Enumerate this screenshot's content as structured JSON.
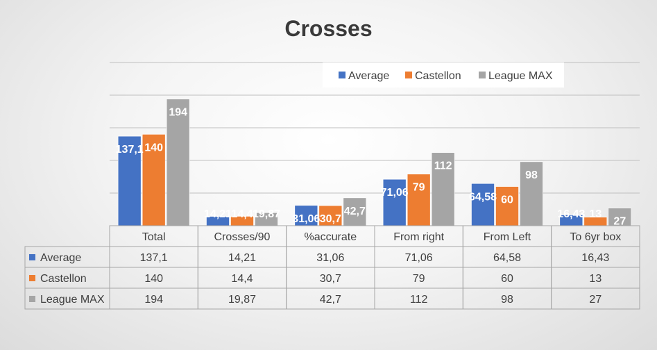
{
  "chart_data": {
    "type": "bar",
    "title": "Crosses",
    "categories": [
      "Total",
      "Crosses/90",
      "%accurate",
      "From right",
      "From Left",
      "To 6yr box"
    ],
    "series": [
      {
        "name": "Average",
        "color": "#4472c4",
        "values": [
          137.1,
          14.21,
          31.06,
          71.06,
          64.58,
          16.43
        ],
        "labels": [
          "137,1",
          "14,21",
          "31,06",
          "71,06",
          "64,58",
          "16,43"
        ]
      },
      {
        "name": "Castellon",
        "color": "#ed7d31",
        "values": [
          140,
          14.4,
          30.7,
          79,
          60,
          13
        ],
        "labels": [
          "140",
          "14,4",
          "30,7",
          "79",
          "60",
          "13"
        ]
      },
      {
        "name": "League MAX",
        "color": "#a5a5a5",
        "values": [
          194,
          19.87,
          42.7,
          112,
          98,
          27
        ],
        "labels": [
          "194",
          "19,87",
          "42,7",
          "112",
          "98",
          "27"
        ]
      }
    ],
    "ylim": [
      0,
      250
    ],
    "grid": true,
    "legend_position": "top-right",
    "data_table": true,
    "xlabel": "",
    "ylabel": ""
  }
}
